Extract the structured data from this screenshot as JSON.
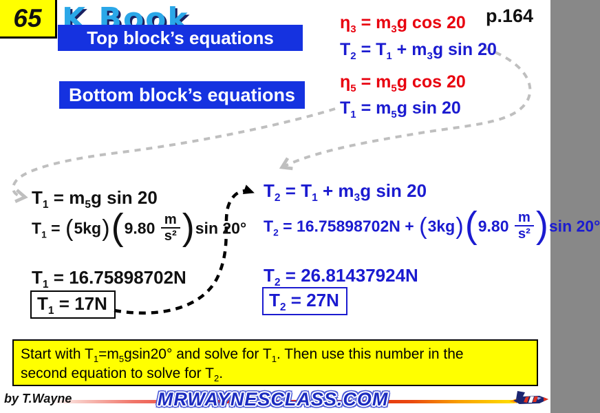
{
  "slide": {
    "page_number": "65",
    "page_ref": "p.164",
    "logo_text": "K Book",
    "banners": {
      "top": "Top block’s equations",
      "bottom": "Bottom block’s equations"
    },
    "colors": {
      "banner_blue": "#1532e0",
      "equation_red": "#e8000e",
      "equation_blue": "#1b1bd0",
      "highlight_yellow": "#ffff00",
      "logo_blue": "#2aa7e8",
      "arrow_gray": "#bfbfbf",
      "arrow_black": "#000000"
    },
    "equations": {
      "top_right": [
        {
          "color": "red",
          "tokens": [
            [
              "t",
              "η"
            ],
            [
              "s",
              "3"
            ],
            [
              "t",
              " = m"
            ],
            [
              "s",
              "3"
            ],
            [
              "t",
              "g cos 20"
            ]
          ]
        },
        {
          "color": "blue",
          "tokens": [
            [
              "t",
              "T"
            ],
            [
              "s",
              "2"
            ],
            [
              "t",
              " = T"
            ],
            [
              "s",
              "1"
            ],
            [
              "t",
              " + m"
            ],
            [
              "s",
              "3"
            ],
            [
              "t",
              "g sin 20"
            ]
          ]
        },
        {
          "color": "red",
          "tokens": [
            [
              "t",
              "η"
            ],
            [
              "s",
              "5"
            ],
            [
              "t",
              " = m"
            ],
            [
              "s",
              "5"
            ],
            [
              "t",
              "g cos 20"
            ]
          ]
        },
        {
          "color": "blue",
          "tokens": [
            [
              "t",
              "T"
            ],
            [
              "s",
              "1"
            ],
            [
              "t",
              " = m"
            ],
            [
              "s",
              "5"
            ],
            [
              "t",
              "g sin 20"
            ]
          ]
        }
      ],
      "left_steps": [
        {
          "tokens": [
            [
              "t",
              "T"
            ],
            [
              "s",
              "1"
            ],
            [
              "t",
              " = m"
            ],
            [
              "s",
              "5"
            ],
            [
              "t",
              "g sin 20"
            ]
          ]
        },
        {
          "tokens": [
            [
              "t",
              "T"
            ],
            [
              "s",
              "1"
            ],
            [
              "t",
              " = "
            ],
            [
              "p",
              "("
            ],
            [
              "t",
              "5kg"
            ],
            [
              "p",
              ")"
            ],
            [
              "P",
              "("
            ],
            [
              "t",
              "9.80 "
            ],
            [
              "f",
              [
                "m",
                "s²"
              ]
            ],
            [
              "P",
              ")"
            ],
            [
              "t",
              "sin 20°"
            ]
          ]
        },
        {
          "tokens": [
            [
              "t",
              "T"
            ],
            [
              "s",
              "1"
            ],
            [
              "t",
              " = 16.75898702N"
            ]
          ]
        },
        {
          "tokens": [
            [
              "t",
              "T"
            ],
            [
              "s",
              "1"
            ],
            [
              "t",
              " = 17N"
            ]
          ]
        }
      ],
      "right_steps": [
        {
          "tokens": [
            [
              "t",
              "T"
            ],
            [
              "s",
              "2"
            ],
            [
              "t",
              " = T"
            ],
            [
              "s",
              "1"
            ],
            [
              "t",
              " + m"
            ],
            [
              "s",
              "3"
            ],
            [
              "t",
              "g sin 20"
            ]
          ]
        },
        {
          "tokens": [
            [
              "t",
              "T"
            ],
            [
              "s",
              "2"
            ],
            [
              "t",
              " = 16.75898702N + "
            ],
            [
              "p",
              "("
            ],
            [
              "t",
              "3kg"
            ],
            [
              "p",
              ")"
            ],
            [
              "P",
              "("
            ],
            [
              "t",
              "9.80 "
            ],
            [
              "f",
              [
                "m",
                "s²"
              ]
            ],
            [
              "P",
              ")"
            ],
            [
              "t",
              "sin 20°"
            ]
          ]
        },
        {
          "tokens": [
            [
              "t",
              "T"
            ],
            [
              "s",
              "2"
            ],
            [
              "t",
              " = 26.81437924N"
            ]
          ]
        },
        {
          "tokens": [
            [
              "t",
              "T"
            ],
            [
              "s",
              "2"
            ],
            [
              "t",
              " = 27N"
            ]
          ]
        }
      ]
    },
    "note": {
      "lines": [
        [
          [
            "t",
            "Start with T"
          ],
          [
            "s",
            "1"
          ],
          [
            "t",
            "=m"
          ],
          [
            "s",
            "5"
          ],
          [
            "t",
            "gsin20° and solve for T"
          ],
          [
            "s",
            "1"
          ],
          [
            "t",
            ". Then use this number in the"
          ]
        ],
        [
          [
            "t",
            "second equation to solve for T"
          ],
          [
            "s",
            "2"
          ],
          [
            "t",
            "."
          ]
        ]
      ]
    },
    "footer": {
      "byline": "by T.Wayne",
      "site": "MRWAYNESCLASS.COM",
      "plane_icon": "jet-plane-icon"
    }
  }
}
